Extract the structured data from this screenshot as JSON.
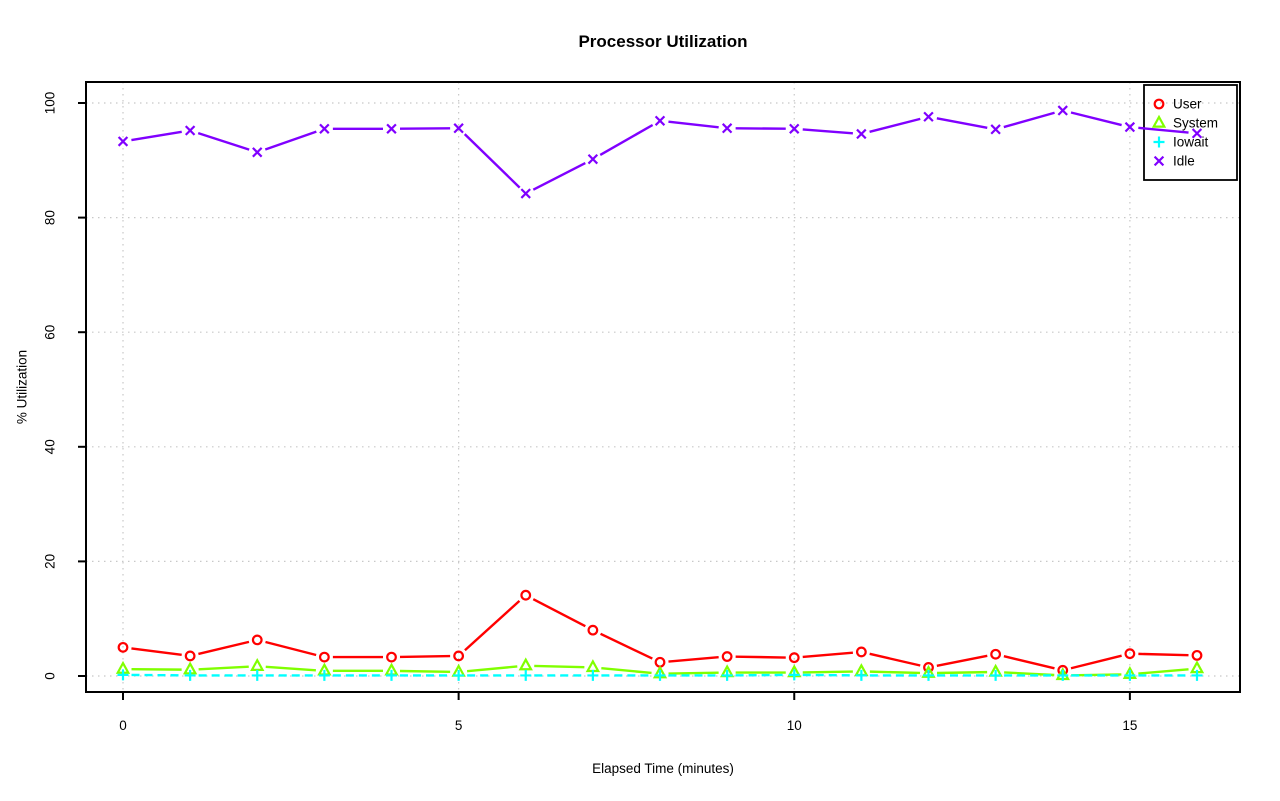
{
  "page": {
    "background": "#ffffff"
  },
  "chart_data": {
    "type": "line",
    "title": "Processor Utilization",
    "xlabel": "Elapsed Time (minutes)",
    "ylabel": "% Utilization",
    "x": [
      0,
      1,
      2,
      3,
      4,
      5,
      6,
      7,
      8,
      9,
      10,
      11,
      12,
      13,
      14,
      15,
      16
    ],
    "xlim": [
      0,
      16
    ],
    "ylim": [
      0,
      100
    ],
    "xticks": [
      0,
      5,
      10,
      15
    ],
    "yticks": [
      0,
      20,
      40,
      60,
      80,
      100
    ],
    "grid": "dotted-lightgray",
    "grid_color": "#c8c8c8",
    "axis_color": "#000000",
    "legend_position": "top-right",
    "series": [
      {
        "name": "User",
        "color": "#ff0000",
        "marker": "circle",
        "line": "solid",
        "values": [
          5.0,
          3.5,
          6.3,
          3.3,
          3.3,
          3.5,
          14.1,
          8.0,
          2.4,
          3.4,
          3.2,
          4.2,
          1.5,
          3.8,
          1.0,
          3.9,
          3.6
        ]
      },
      {
        "name": "System",
        "color": "#80ff00",
        "marker": "triangle",
        "line": "solid",
        "values": [
          1.2,
          1.1,
          1.7,
          0.9,
          0.9,
          0.7,
          1.8,
          1.5,
          0.4,
          0.6,
          0.6,
          0.8,
          0.5,
          0.7,
          0.1,
          0.3,
          1.3
        ]
      },
      {
        "name": "Iowait",
        "color": "#00ffff",
        "marker": "plus",
        "line": "dashed",
        "values": [
          0.2,
          0.1,
          0.1,
          0.1,
          0.1,
          0.1,
          0.1,
          0.1,
          0.1,
          0.1,
          0.2,
          0.1,
          0.1,
          0.1,
          0.1,
          0.1,
          0.1
        ]
      },
      {
        "name": "Idle",
        "color": "#8000ff",
        "marker": "x",
        "line": "solid",
        "values": [
          93.3,
          95.2,
          91.4,
          95.5,
          95.5,
          95.6,
          84.2,
          90.2,
          96.9,
          95.6,
          95.5,
          94.6,
          97.6,
          95.4,
          98.7,
          95.8,
          94.7
        ]
      }
    ],
    "legend": {
      "entries": [
        "User",
        "System",
        "Iowait",
        "Idle"
      ]
    }
  }
}
